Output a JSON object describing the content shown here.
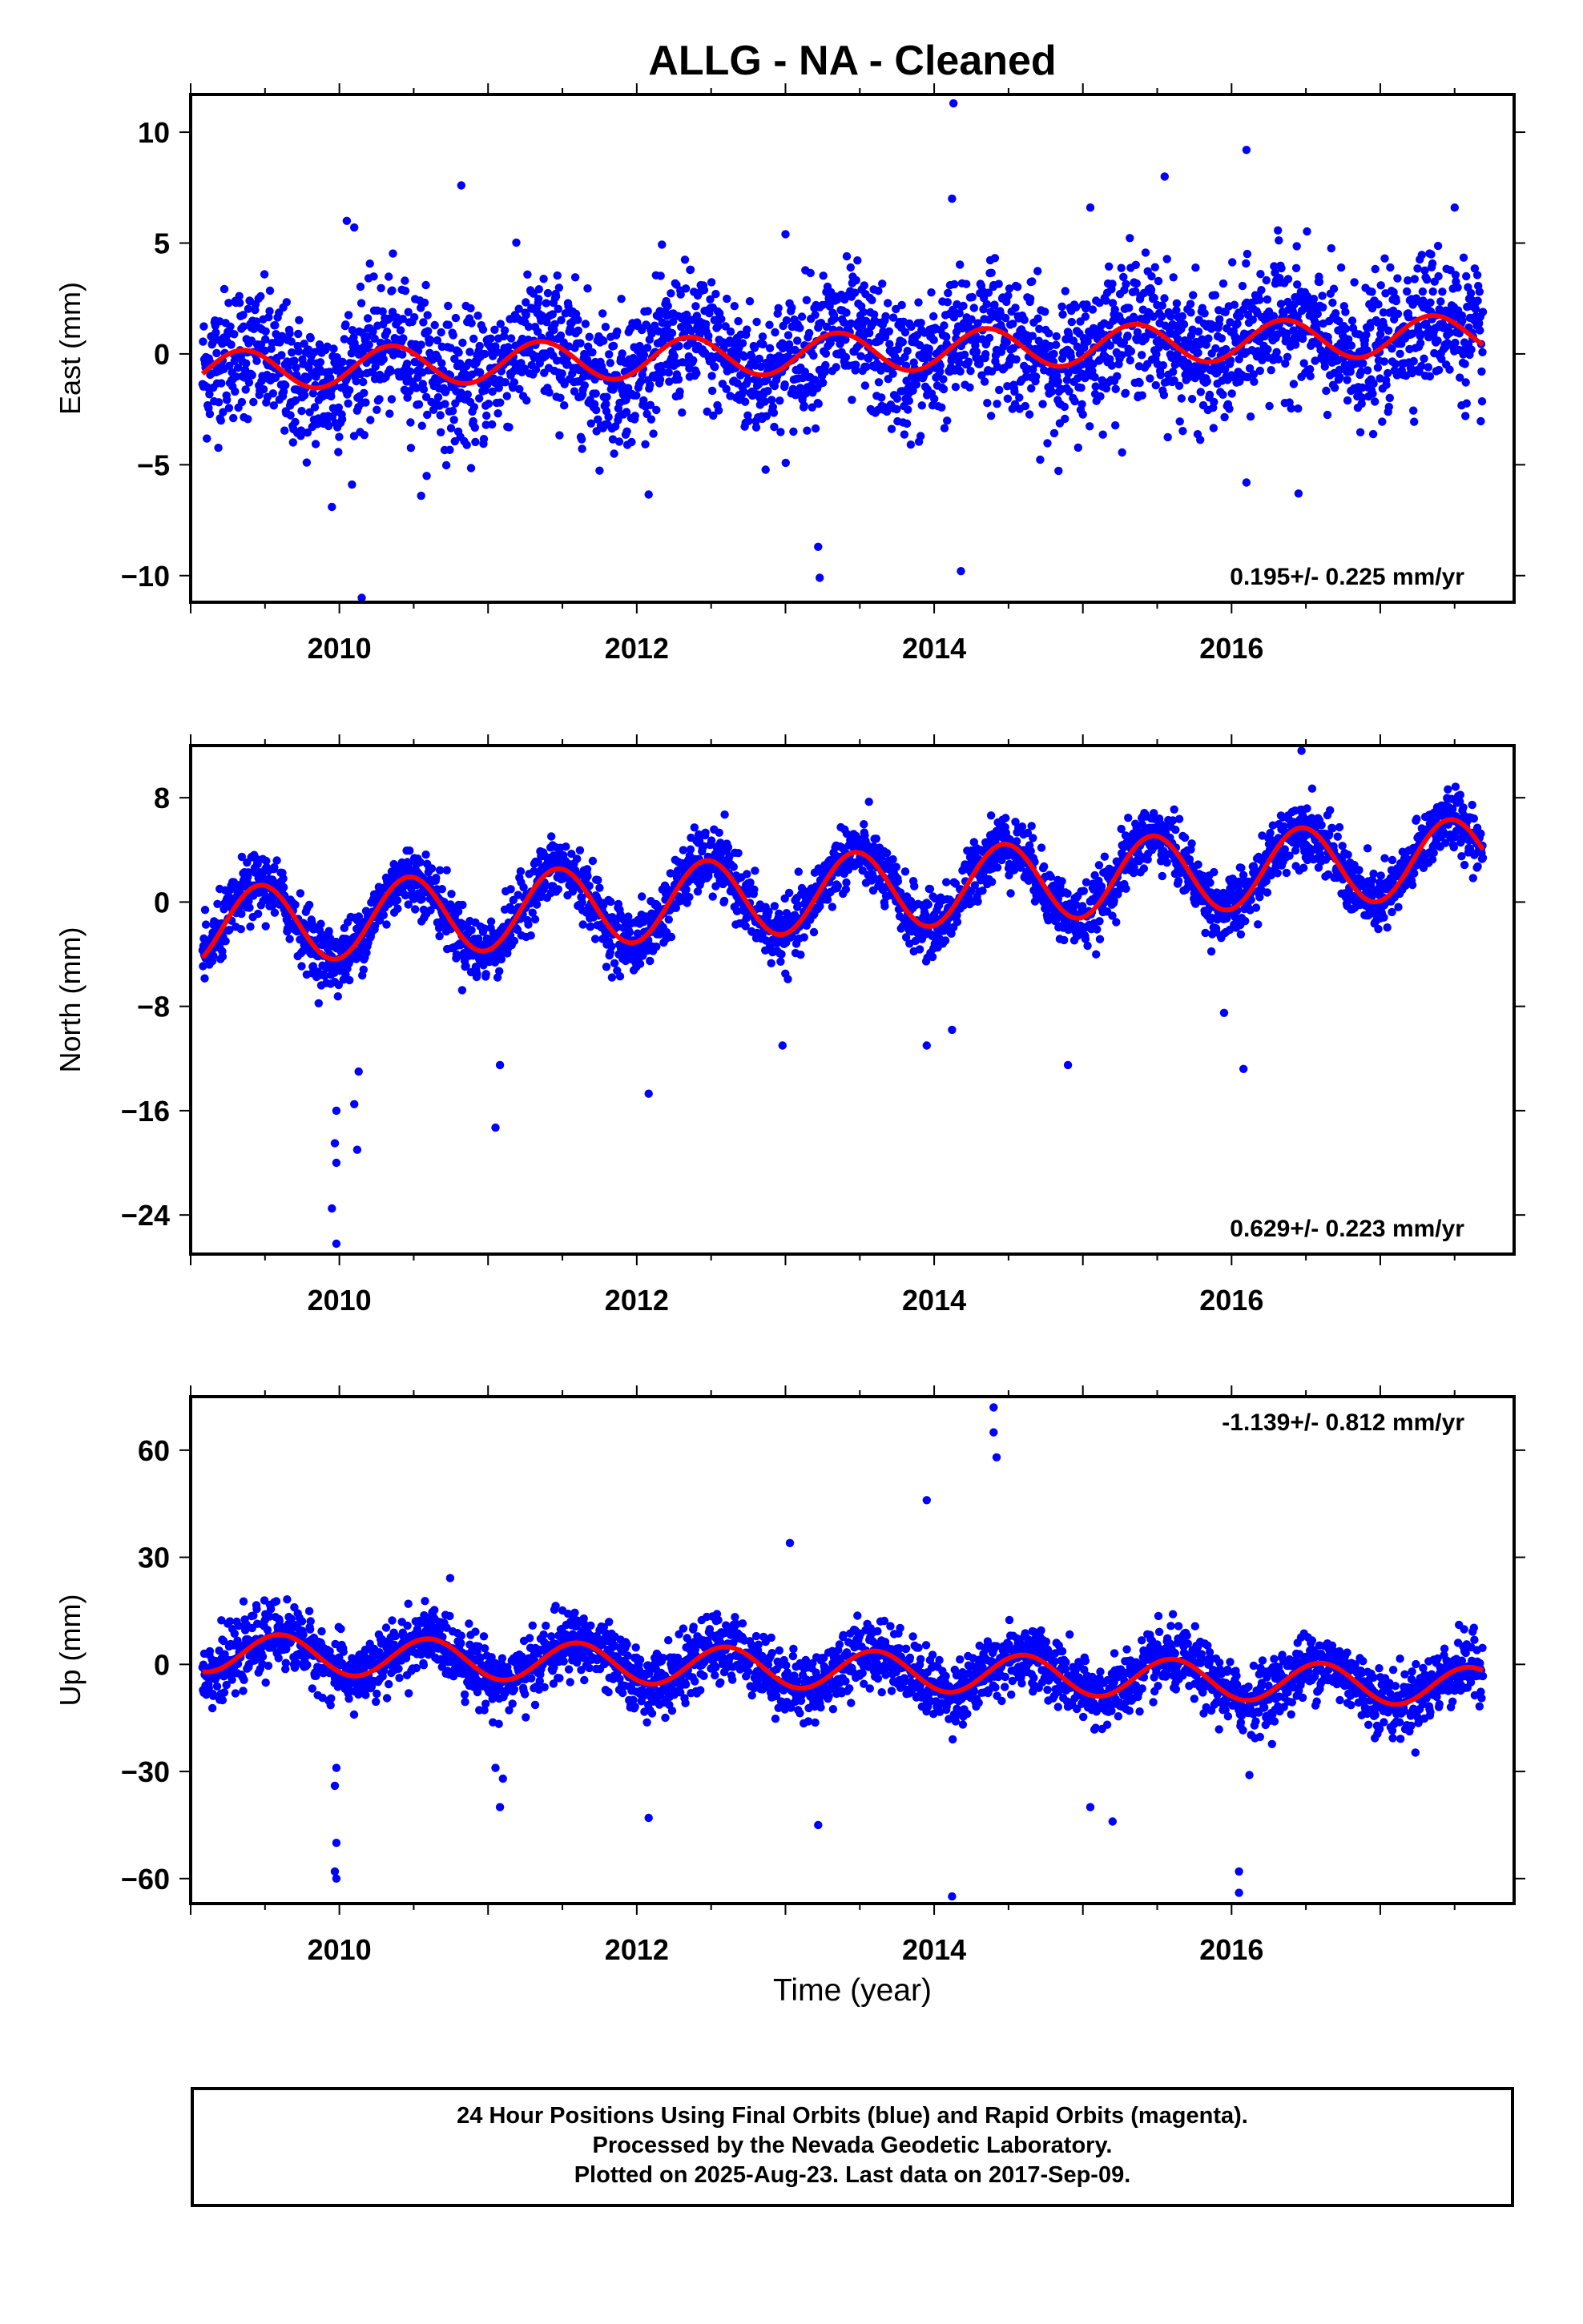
{
  "title": "ALLG  - NA - Cleaned",
  "xlabel": "Time (year)",
  "footer": {
    "line1": "24 Hour Positions Using Final Orbits (blue) and Rapid Orbits (magenta).",
    "line2": "Processed by the Nevada Geodetic Laboratory.",
    "line3": "Plotted on 2025-Aug-23. Last data on 2017-Sep-09."
  },
  "colors": {
    "points": "#0000ff",
    "model": "#ff0000",
    "axis": "#000000"
  },
  "chart_data": [
    {
      "type": "scatter",
      "ylabel": "East (mm)",
      "annotation": "0.195+/- 0.225 mm/yr",
      "annotation_position": "bottom-right",
      "xlim": [
        2009.0,
        2017.9
      ],
      "ylim": [
        -11.2,
        11.7
      ],
      "xticks": [
        2010,
        2012,
        2014,
        2016
      ],
      "yticks": [
        10,
        5,
        0,
        -5,
        -10
      ],
      "ytick_labels": [
        "10",
        "5",
        "0",
        "−5",
        "−10"
      ],
      "series": [
        {
          "kind": "points",
          "x_range": [
            2009.08,
            2017.69
          ],
          "trend": {
            "value_at_start": -0.8,
            "rate_per_year": 0.195
          },
          "seasonal": {
            "amplitude": 0.9,
            "phase_year": 0.1
          },
          "noise_std": 1.5,
          "outliers": [
            [
              2009.95,
              -6.9
            ],
            [
              2010.15,
              -11.0
            ],
            [
              2010.55,
              -6.4
            ],
            [
              2010.82,
              7.6
            ],
            [
              2013.23,
              -10.1
            ],
            [
              2013.22,
              -8.7
            ],
            [
              2014.13,
              11.3
            ],
            [
              2014.12,
              7.0
            ],
            [
              2014.18,
              -9.8
            ],
            [
              2015.55,
              8.0
            ],
            [
              2016.1,
              9.2
            ],
            [
              2016.1,
              -5.8
            ],
            [
              2016.45,
              -6.3
            ],
            [
              2010.05,
              6.0
            ],
            [
              2010.1,
              5.7
            ],
            [
              2013.0,
              5.4
            ],
            [
              2015.05,
              6.6
            ],
            [
              2017.5,
              6.6
            ]
          ]
        },
        {
          "kind": "model-line",
          "trend": {
            "value_at_start": -0.8,
            "rate_per_year": 0.195
          },
          "seasonal": {
            "amplitude": 0.9,
            "phase_year": 0.1
          }
        }
      ]
    },
    {
      "type": "scatter",
      "ylabel": "North (mm)",
      "annotation": "0.629+/- 0.223 mm/yr",
      "annotation_position": "bottom-right",
      "xlim": [
        2009.0,
        2017.9
      ],
      "ylim": [
        -27.0,
        12.0
      ],
      "xticks": [
        2010,
        2012,
        2014,
        2016
      ],
      "yticks": [
        8,
        0,
        -8,
        -16,
        -24
      ],
      "ytick_labels": [
        "8",
        "0",
        "−8",
        "−16",
        "−24"
      ],
      "series": [
        {
          "kind": "points",
          "x_range": [
            2009.08,
            2017.69
          ],
          "trend": {
            "value_at_start": -2.0,
            "rate_per_year": 0.629
          },
          "seasonal": {
            "amplitude": 3.0,
            "phase_year": 0.22
          },
          "noise_std": 1.2,
          "outliers": [
            [
              2009.98,
              -16.0
            ],
            [
              2009.97,
              -18.5
            ],
            [
              2009.98,
              -20.0
            ],
            [
              2009.95,
              -23.5
            ],
            [
              2009.98,
              -26.2
            ],
            [
              2010.12,
              -19.0
            ],
            [
              2010.1,
              -15.5
            ],
            [
              2010.13,
              -13.0
            ],
            [
              2011.05,
              -17.3
            ],
            [
              2011.08,
              -12.5
            ],
            [
              2012.08,
              -14.7
            ],
            [
              2012.98,
              -11.0
            ],
            [
              2013.95,
              -11.0
            ],
            [
              2014.12,
              -9.8
            ],
            [
              2014.9,
              -12.5
            ],
            [
              2015.95,
              -8.5
            ],
            [
              2016.08,
              -12.8
            ],
            [
              2016.47,
              11.6
            ]
          ]
        },
        {
          "kind": "model-line",
          "trend": {
            "value_at_start": -2.0,
            "rate_per_year": 0.629
          },
          "seasonal": {
            "amplitude": 3.0,
            "phase_year": 0.22
          }
        }
      ]
    },
    {
      "type": "scatter",
      "ylabel": "Up (mm)",
      "annotation": "-1.139+/- 0.812 mm/yr",
      "annotation_position": "top-right",
      "xlim": [
        2009.0,
        2017.9
      ],
      "ylim": [
        -67.0,
        75.0
      ],
      "xticks": [
        2010,
        2012,
        2014,
        2016
      ],
      "yticks": [
        60,
        30,
        0,
        -30,
        -60
      ],
      "ytick_labels": [
        "60",
        "30",
        "0",
        "−30",
        "−60"
      ],
      "series": [
        {
          "kind": "points",
          "x_range": [
            2009.08,
            2017.69
          ],
          "trend": {
            "value_at_start": 3.5,
            "rate_per_year": -1.139
          },
          "seasonal": {
            "amplitude": 5.5,
            "phase_year": 0.35
          },
          "noise_std": 4.5,
          "outliers": [
            [
              2009.98,
              -29.0
            ],
            [
              2009.97,
              -34.0
            ],
            [
              2009.98,
              -50.0
            ],
            [
              2009.97,
              -58.0
            ],
            [
              2009.98,
              -60.0
            ],
            [
              2011.05,
              -29.0
            ],
            [
              2011.08,
              -40.0
            ],
            [
              2011.1,
              -32.0
            ],
            [
              2012.08,
              -43.0
            ],
            [
              2013.03,
              34.0
            ],
            [
              2013.22,
              -45.0
            ],
            [
              2013.95,
              46.0
            ],
            [
              2014.4,
              72.0
            ],
            [
              2014.4,
              65.0
            ],
            [
              2014.42,
              58.0
            ],
            [
              2014.12,
              -65.0
            ],
            [
              2015.05,
              -40.0
            ],
            [
              2015.2,
              -44.0
            ],
            [
              2016.05,
              -58.0
            ],
            [
              2016.05,
              -64.0
            ],
            [
              2016.12,
              -31.0
            ]
          ]
        },
        {
          "kind": "model-line",
          "trend": {
            "value_at_start": 3.5,
            "rate_per_year": -1.139
          },
          "seasonal": {
            "amplitude": 5.5,
            "phase_year": 0.35
          }
        }
      ]
    }
  ]
}
